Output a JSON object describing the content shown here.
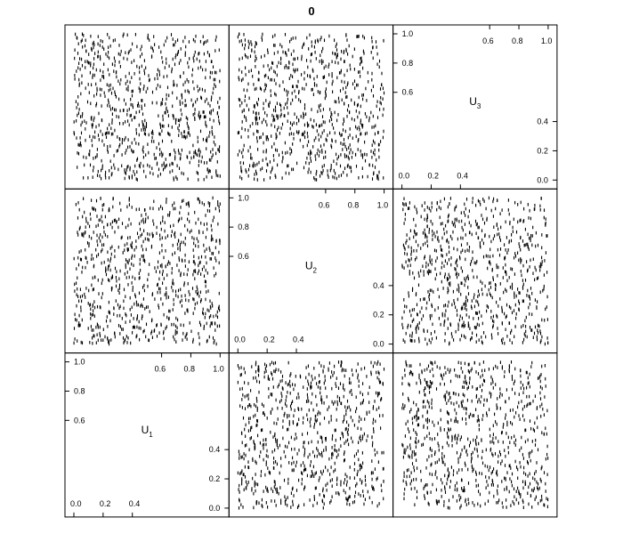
{
  "chart_data": {
    "type": "scatter",
    "title": "0",
    "grid": false,
    "variables": [
      {
        "name": "U",
        "subscript": "1"
      },
      {
        "name": "U",
        "subscript": "2"
      },
      {
        "name": "U",
        "subscript": "3"
      }
    ],
    "axis_range": [
      0,
      1
    ],
    "diagonal_ticks": {
      "low": [
        "0.0",
        "0.2",
        "0.4"
      ],
      "high": [
        "0.6",
        "0.8",
        "1.0"
      ],
      "left": [
        "0.6",
        "0.8",
        "1.0"
      ],
      "right": [
        "0.0",
        "0.2",
        "0.4"
      ]
    },
    "sample": {
      "n": 800,
      "distribution": "uniform",
      "marker": "short vertical dash",
      "color": "#000000"
    },
    "points": []
  }
}
